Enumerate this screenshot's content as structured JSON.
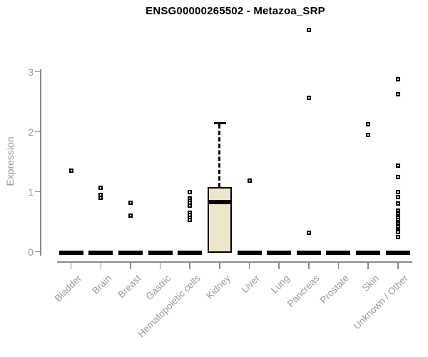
{
  "chart_data": {
    "type": "boxplot",
    "title": "ENSG00000265502 - Metazoa_SRP",
    "xlabel": "",
    "ylabel": "Expression",
    "yticks": [
      0,
      1,
      2,
      3
    ],
    "ylim": [
      0,
      3
    ],
    "grid": "off",
    "legend": "none",
    "colors": {
      "box_fill": "#ece6cb",
      "box_border": "#000000",
      "axis": "#8a8a8a",
      "axis_text": "#9a9a9a",
      "title_text": "#000000",
      "background": "#ffffff"
    },
    "categories": [
      {
        "label": "Bladder",
        "box": {
          "lo": 0,
          "q1": 0,
          "median": 0,
          "q3": 0,
          "hi": 0
        },
        "outliers": [
          1.35
        ]
      },
      {
        "label": "Brain",
        "box": {
          "lo": 0,
          "q1": 0,
          "median": 0,
          "q3": 0,
          "hi": 0
        },
        "outliers": [
          1.07,
          0.95,
          0.9
        ]
      },
      {
        "label": "Breast",
        "box": {
          "lo": 0,
          "q1": 0,
          "median": 0,
          "q3": 0,
          "hi": 0
        },
        "outliers": [
          0.81,
          0.6
        ]
      },
      {
        "label": "Gastric",
        "box": {
          "lo": 0,
          "q1": 0,
          "median": 0,
          "q3": 0,
          "hi": 0
        },
        "outliers": []
      },
      {
        "label": "Hematopoietic cells",
        "box": {
          "lo": 0,
          "q1": 0,
          "median": 0,
          "q3": 0,
          "hi": 0
        },
        "outliers": [
          0.99,
          0.89,
          0.85,
          0.81,
          0.77,
          0.65,
          0.61,
          0.57,
          0.53
        ]
      },
      {
        "label": "Kidney",
        "box": {
          "lo": 0,
          "q1": 0,
          "median": 0.83,
          "q3": 1.08,
          "hi": 2.15
        },
        "outliers": []
      },
      {
        "label": "Liver",
        "box": {
          "lo": 0,
          "q1": 0,
          "median": 0,
          "q3": 0,
          "hi": 0
        },
        "outliers": [
          1.19
        ]
      },
      {
        "label": "Lung",
        "box": {
          "lo": 0,
          "q1": 0,
          "median": 0,
          "q3": 0,
          "hi": 0
        },
        "outliers": []
      },
      {
        "label": "Pancreas",
        "box": {
          "lo": 0,
          "q1": 0,
          "median": 0,
          "q3": 0,
          "hi": 0
        },
        "outliers": [
          3.7,
          2.56,
          0.31
        ]
      },
      {
        "label": "Prostate",
        "box": {
          "lo": 0,
          "q1": 0,
          "median": 0,
          "q3": 0,
          "hi": 0
        },
        "outliers": []
      },
      {
        "label": "Skin",
        "box": {
          "lo": 0,
          "q1": 0,
          "median": 0,
          "q3": 0,
          "hi": 0
        },
        "outliers": [
          2.12,
          1.95
        ]
      },
      {
        "label": "Unknown / Other",
        "box": {
          "lo": 0,
          "q1": 0,
          "median": 0,
          "q3": 0,
          "hi": 0
        },
        "outliers": [
          2.88,
          2.62,
          1.43,
          1.24,
          1.0,
          0.91,
          0.8,
          0.68,
          0.65,
          0.62,
          0.59,
          0.56,
          0.53,
          0.5,
          0.47,
          0.44,
          0.41,
          0.38,
          0.35,
          0.33,
          0.25
        ]
      }
    ]
  }
}
